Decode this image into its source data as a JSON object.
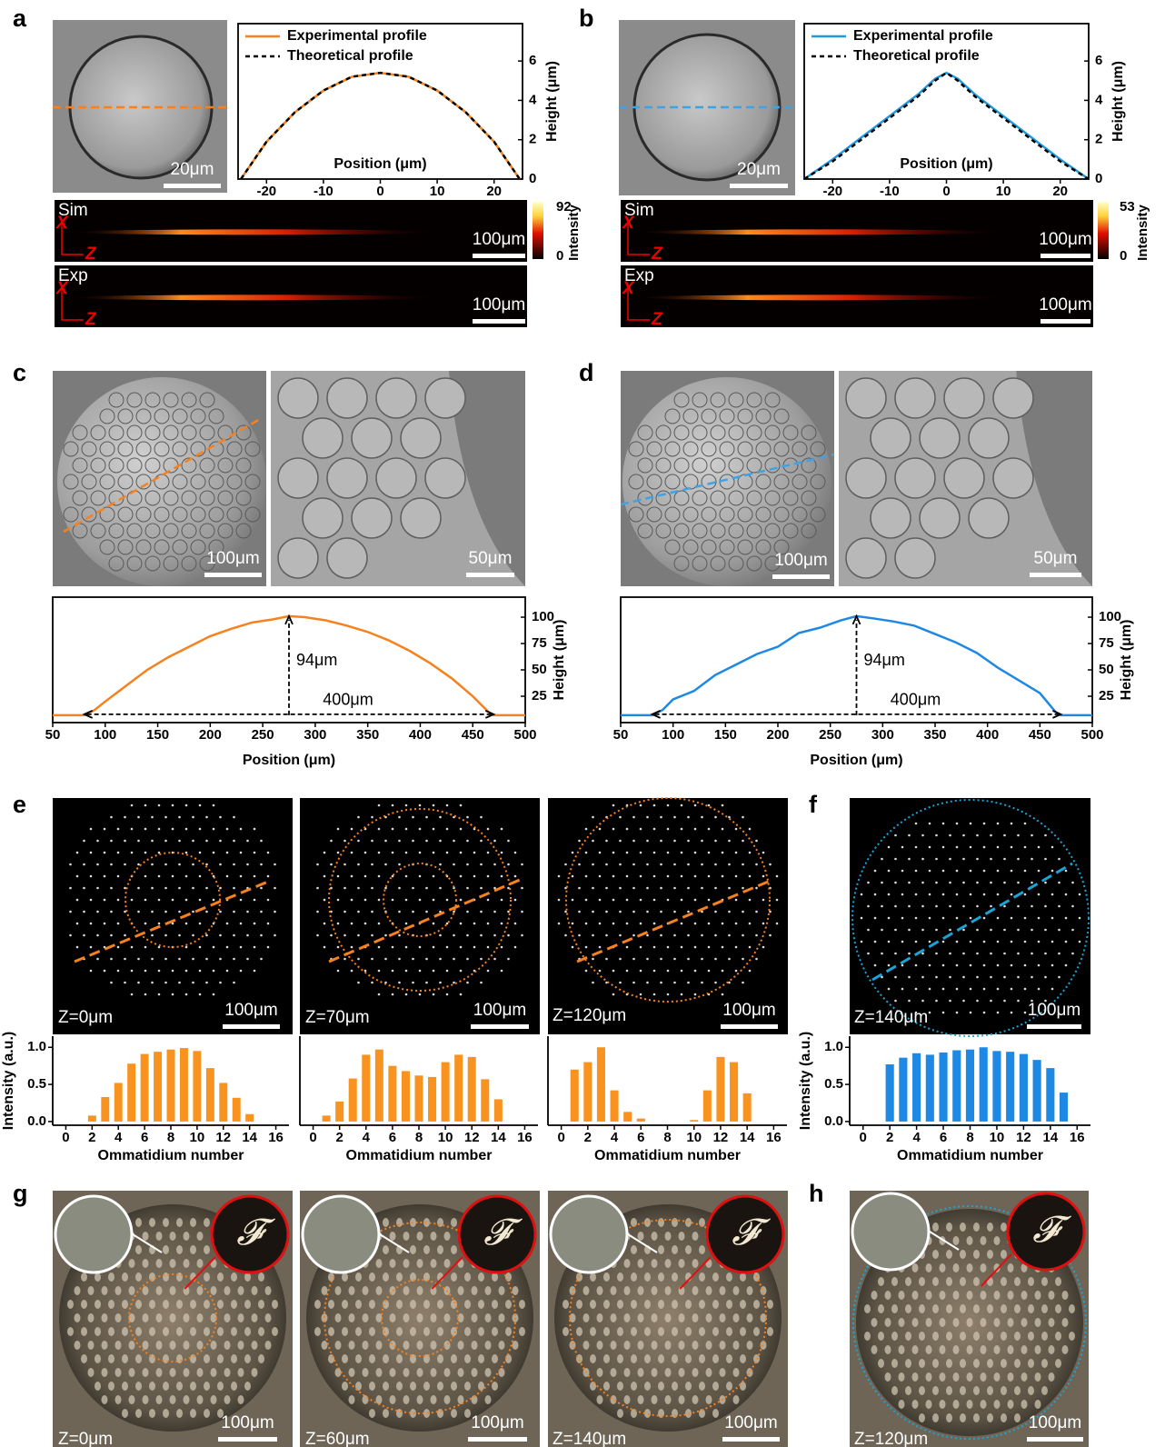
{
  "figure": {
    "panel_letters": [
      "a",
      "b",
      "c",
      "d",
      "e",
      "f",
      "g",
      "h"
    ],
    "scale_bar_labels": [
      "20μm",
      "20μm",
      "100μm",
      "100μm",
      "100μm",
      "100μm",
      "100μm",
      "50μm",
      "100μm",
      "50μm",
      "100μm",
      "100μm",
      "100μm",
      "100μm",
      "100μm",
      "100μm",
      "100μm",
      "100μm"
    ],
    "beam_labels": [
      "Sim",
      "Exp",
      "Sim",
      "Exp"
    ],
    "axis_letters": [
      "X",
      "Z"
    ],
    "colorbars": [
      {
        "max": 92,
        "min": 0,
        "label": "Intensity"
      },
      {
        "max": 53,
        "min": 0,
        "label": "Intensity"
      }
    ],
    "z_labels": [
      "Z=0μm",
      "Z=70μm",
      "Z=120μm",
      "Z=140μm",
      "Z=0μm",
      "Z=60μm",
      "Z=140μm",
      "Z=120μm"
    ]
  },
  "chart_data": [
    {
      "type": "line",
      "xlabel": "Position (μm)",
      "ylabel": "Height (μm)",
      "x": [
        -24.5,
        -20,
        -15,
        -10,
        -5,
        0,
        5,
        10,
        15,
        20,
        24.5
      ],
      "series": [
        {
          "name": "Experimental profile",
          "color": "#f5821f",
          "values": [
            0,
            1.9,
            3.4,
            4.5,
            5.2,
            5.4,
            5.2,
            4.5,
            3.4,
            1.9,
            0
          ]
        },
        {
          "name": "Theoretical profile",
          "color": "#000000",
          "linestyle": "dashed",
          "values": [
            0,
            1.9,
            3.4,
            4.5,
            5.2,
            5.4,
            5.2,
            4.5,
            3.4,
            1.9,
            0
          ]
        }
      ],
      "xlim": [
        -25,
        25
      ],
      "ylim": [
        0,
        7.9
      ],
      "xticks": [
        -20,
        -10,
        0,
        10,
        20
      ],
      "yticks": [
        0,
        2,
        4,
        6
      ],
      "legend": "top-left"
    },
    {
      "type": "line",
      "xlabel": "Position (μm)",
      "ylabel": "Height (μm)",
      "x": [
        -25,
        -20,
        -15,
        -10,
        -5,
        -2,
        0,
        2,
        5,
        10,
        15,
        20,
        25
      ],
      "series": [
        {
          "name": "Experimental profile",
          "color": "#1e9be0",
          "values": [
            0,
            1.0,
            2.1,
            3.2,
            4.3,
            5.1,
            5.4,
            5.1,
            4.3,
            3.2,
            2.1,
            1.0,
            0
          ]
        },
        {
          "name": "Theoretical profile",
          "color": "#000000",
          "linestyle": "dashed",
          "values": [
            0,
            0.9,
            2.0,
            3.1,
            4.2,
            5.0,
            5.4,
            5.0,
            4.2,
            3.1,
            2.0,
            0.9,
            0
          ]
        }
      ],
      "xlim": [
        -25,
        25
      ],
      "ylim": [
        0,
        7.9
      ],
      "xticks": [
        -20,
        -10,
        0,
        10,
        20
      ],
      "yticks": [
        0,
        2,
        4,
        6
      ],
      "legend": "top-left"
    },
    {
      "type": "line",
      "xlabel": "Position (μm)",
      "ylabel": "Height (μm)",
      "color": "#f5821f",
      "x": [
        50,
        80,
        90,
        100,
        120,
        140,
        160,
        180,
        200,
        220,
        240,
        260,
        275,
        290,
        310,
        330,
        350,
        370,
        390,
        410,
        430,
        450,
        465,
        470,
        500
      ],
      "values": [
        7,
        7,
        12,
        20,
        35,
        50,
        62,
        72,
        82,
        89,
        95,
        98,
        101,
        100,
        97,
        92,
        86,
        78,
        68,
        56,
        42,
        25,
        10,
        7,
        7
      ],
      "annotations": [
        "94μm",
        "400μm"
      ],
      "xlim": [
        50,
        500
      ],
      "ylim": [
        0,
        119
      ],
      "xticks": [
        50,
        100,
        150,
        200,
        250,
        300,
        350,
        400,
        450,
        500
      ],
      "yticks": [
        25,
        50,
        75,
        100
      ]
    },
    {
      "type": "line",
      "xlabel": "Position (μm)",
      "ylabel": "Height (μm)",
      "color": "#1e88e5",
      "x": [
        50,
        80,
        90,
        100,
        120,
        140,
        160,
        180,
        200,
        220,
        240,
        260,
        275,
        290,
        310,
        330,
        350,
        370,
        390,
        410,
        430,
        450,
        465,
        470,
        500
      ],
      "values": [
        7,
        7,
        12,
        22,
        30,
        45,
        55,
        65,
        72,
        85,
        90,
        97,
        101,
        99,
        96,
        92,
        84,
        76,
        66,
        52,
        40,
        28,
        10,
        7,
        7
      ],
      "annotations": [
        "94μm",
        "400μm"
      ],
      "xlim": [
        50,
        500
      ],
      "ylim": [
        0,
        119
      ],
      "xticks": [
        50,
        100,
        150,
        200,
        250,
        300,
        350,
        400,
        450,
        500
      ],
      "yticks": [
        25,
        50,
        75,
        100
      ]
    },
    {
      "type": "bar",
      "xlabel": "Ommatidium number",
      "ylabel": "Intensity (a.u.)",
      "color": "#f7931e",
      "x": [
        2,
        3,
        4,
        5,
        6,
        7,
        8,
        9,
        10,
        11,
        12,
        13,
        14
      ],
      "values": [
        0.08,
        0.33,
        0.52,
        0.78,
        0.91,
        0.94,
        0.97,
        0.99,
        0.95,
        0.72,
        0.52,
        0.32,
        0.1
      ],
      "xlim": [
        -1,
        17
      ],
      "ylim": [
        -0.05,
        1.15
      ],
      "xticks": [
        0,
        2,
        4,
        6,
        8,
        10,
        12,
        14,
        16
      ],
      "yticks": [
        {
          "value": 0,
          "label": "0.0"
        },
        {
          "value": 0.5,
          "label": "0.5"
        },
        {
          "value": 1,
          "label": "1.0"
        }
      ]
    },
    {
      "type": "bar",
      "xlabel": "Ommatidium number",
      "color": "#f7931e",
      "x": [
        1,
        2,
        3,
        4,
        5,
        6,
        7,
        8,
        9,
        10,
        11,
        12,
        13,
        14
      ],
      "values": [
        0.08,
        0.27,
        0.58,
        0.9,
        0.97,
        0.75,
        0.68,
        0.62,
        0.6,
        0.8,
        0.9,
        0.87,
        0.57,
        0.3
      ],
      "xlim": [
        -1,
        17
      ],
      "ylim": [
        -0.05,
        1.15
      ],
      "xticks": [
        0,
        2,
        4,
        6,
        8,
        10,
        12,
        14,
        16
      ]
    },
    {
      "type": "bar",
      "xlabel": "Ommatidium number",
      "color": "#f7931e",
      "x": [
        1,
        2,
        3,
        4,
        5,
        6,
        10,
        11,
        12,
        13,
        14
      ],
      "values": [
        0.7,
        0.8,
        1.0,
        0.42,
        0.13,
        0.04,
        0.02,
        0.42,
        0.87,
        0.8,
        0.38
      ],
      "xlim": [
        -1,
        17
      ],
      "ylim": [
        -0.05,
        1.15
      ],
      "xticks": [
        0,
        2,
        4,
        6,
        8,
        10,
        12,
        14,
        16
      ]
    },
    {
      "type": "bar",
      "xlabel": "Ommatidium number",
      "ylabel": "Intensity (a.u.)",
      "color": "#1e88e5",
      "x": [
        2,
        3,
        4,
        5,
        6,
        7,
        8,
        9,
        10,
        11,
        12,
        13,
        14,
        15
      ],
      "values": [
        0.77,
        0.86,
        0.92,
        0.9,
        0.93,
        0.96,
        0.97,
        1.0,
        0.95,
        0.94,
        0.91,
        0.83,
        0.72,
        0.39
      ],
      "xlim": [
        -1,
        17
      ],
      "ylim": [
        -0.05,
        1.15
      ],
      "xticks": [
        0,
        2,
        4,
        6,
        8,
        10,
        12,
        14,
        16
      ],
      "yticks": [
        {
          "value": 0,
          "label": "0.0"
        },
        {
          "value": 0.5,
          "label": "0.5"
        },
        {
          "value": 1,
          "label": "1.0"
        }
      ]
    }
  ]
}
